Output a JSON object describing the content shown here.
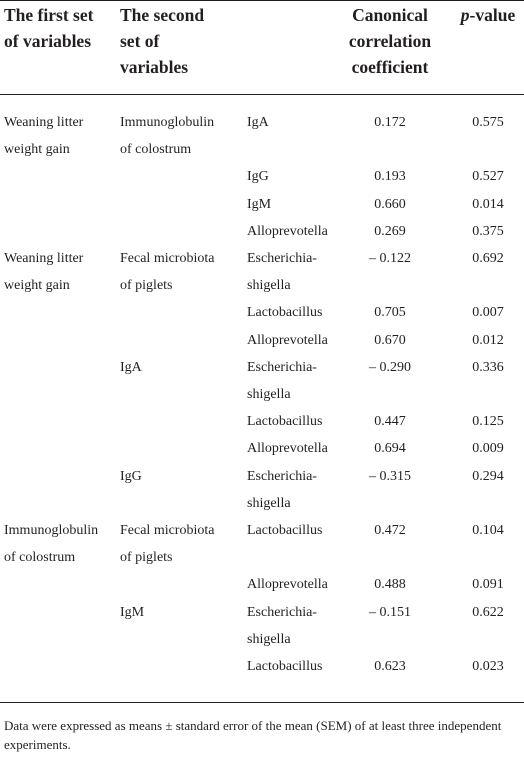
{
  "headers": {
    "col1": [
      "The first set",
      "of variables"
    ],
    "col2": [
      "The second",
      "set of",
      "variables"
    ],
    "col4": [
      "Canonical",
      "correlation",
      "coefficient"
    ],
    "col5_italic": "p",
    "col5_rest": "-value"
  },
  "rows": [
    {
      "c1": "Weaning litter",
      "c2": "Immunoglobulin",
      "c3": "IgA",
      "coef": "0.172",
      "p": "0.575"
    },
    {
      "c1": "weight gain",
      "c2": "of colostrum",
      "c3": "",
      "coef": "",
      "p": ""
    },
    {
      "c1": "",
      "c2": "",
      "c3": "IgG",
      "coef": "0.193",
      "p": "0.527"
    },
    {
      "c1": "",
      "c2": "",
      "c3": "IgM",
      "coef": "0.660",
      "p": "0.014"
    },
    {
      "c1": "",
      "c2": "",
      "c3": "Alloprevotella",
      "coef": "0.269",
      "p": "0.375"
    },
    {
      "c1": "Weaning litter",
      "c2": "Fecal microbiota",
      "c3": "Escherichia-",
      "coef": "– 0.122",
      "p": "0.692"
    },
    {
      "c1": "weight gain",
      "c2": "of piglets",
      "c3": "shigella",
      "coef": "",
      "p": ""
    },
    {
      "c1": "",
      "c2": "",
      "c3": "Lactobacillus",
      "coef": "0.705",
      "p": "0.007"
    },
    {
      "c1": "",
      "c2": "",
      "c3": "Alloprevotella",
      "coef": "0.670",
      "p": "0.012"
    },
    {
      "c1": "",
      "c2": "IgA",
      "c3": "Escherichia-",
      "coef": "– 0.290",
      "p": "0.336"
    },
    {
      "c1": "",
      "c2": "",
      "c3": "shigella",
      "coef": "",
      "p": ""
    },
    {
      "c1": "",
      "c2": "",
      "c3": "Lactobacillus",
      "coef": "0.447",
      "p": "0.125"
    },
    {
      "c1": "",
      "c2": "",
      "c3": "Alloprevotella",
      "coef": "0.694",
      "p": "0.009"
    },
    {
      "c1": "",
      "c2": "IgG",
      "c3": "Escherichia-",
      "coef": "– 0.315",
      "p": "0.294"
    },
    {
      "c1": "",
      "c2": "",
      "c3": "shigella",
      "coef": "",
      "p": ""
    },
    {
      "c1": "Immunoglobulin",
      "c2": "Fecal microbiota",
      "c3": "Lactobacillus",
      "coef": "0.472",
      "p": "0.104"
    },
    {
      "c1": "of colostrum",
      "c2": "of piglets",
      "c3": "",
      "coef": "",
      "p": ""
    },
    {
      "c1": "",
      "c2": "",
      "c3": "Alloprevotella",
      "coef": "0.488",
      "p": "0.091"
    },
    {
      "c1": "",
      "c2": "IgM",
      "c3": "Escherichia-",
      "coef": "– 0.151",
      "p": "0.622"
    },
    {
      "c1": "",
      "c2": "",
      "c3": "shigella",
      "coef": "",
      "p": ""
    },
    {
      "c1": "",
      "c2": "",
      "c3": "Lactobacillus",
      "coef": "0.623",
      "p": "0.023"
    }
  ],
  "footnote": "Data were expressed as means ± standard error of the mean (SEM) of at least three independent experiments."
}
